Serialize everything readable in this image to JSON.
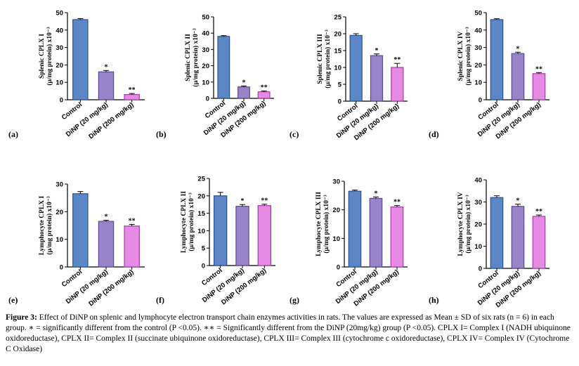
{
  "colors": {
    "control": "#5b87c6",
    "control_stroke": "#2e4f8a",
    "dinp20": "#9a84c9",
    "dinp20_stroke": "#5a4690",
    "dinp200": "#e68ae6",
    "dinp200_stroke": "#a13ea1",
    "axis": "#000000"
  },
  "caption": {
    "lead": "Figure 3:",
    "text": " Effect of DiNP on splenic and lymphocyte electron transport chain enzymes activities in rats. The values are expressed as Mean ± SD of six rats (n = 6) in each group. ∗ = significantly different from the control (P <0.05). ∗∗ = Significantly different from the DiNP (20mg/kg) group (P <0.05). CPLX I= Complex I (NADH ubiquinone oxidoreductase), CPLX II= Complex II (succinate ubiquinone oxidoreductase), CPLX III= Complex III (cytochrome c oxidoreductase), CPLX IV= Complex IV (Cytochrome C Oxidase)"
  },
  "chart_data": [
    {
      "panel": "(a)",
      "type": "bar",
      "categories": [
        "Control",
        "DiNP (20 mg/kg)",
        "DiNP (200 mg/kg)"
      ],
      "values": [
        46,
        16,
        3
      ],
      "errors": [
        0.6,
        0.8,
        0.6
      ],
      "sig": [
        "",
        "*",
        "**"
      ],
      "ylabel": [
        "Splenic CPLX I",
        "(µ/mg protein) x10⁻³"
      ],
      "ylim": [
        0,
        50
      ],
      "yticks": [
        0,
        10,
        20,
        30,
        40,
        50
      ]
    },
    {
      "panel": "(b)",
      "type": "bar",
      "categories": [
        "Control",
        "DiNP (20 mg/kg)",
        "DiNP (200 mg/kg)"
      ],
      "values": [
        38,
        7,
        4
      ],
      "errors": [
        0.5,
        0.6,
        0.5
      ],
      "sig": [
        "",
        "*",
        "**"
      ],
      "ylabel": [
        "Splenic CPLX II",
        "(µ/mg protein) x10⁻³"
      ],
      "ylim": [
        0,
        50
      ],
      "yticks": [
        0,
        10,
        20,
        30,
        40,
        50
      ]
    },
    {
      "panel": "(c)",
      "type": "bar",
      "categories": [
        "Control",
        "DiNP (20 mg/kg)",
        "DiNP (200 mg/kg)"
      ],
      "values": [
        19.5,
        13.5,
        10
      ],
      "errors": [
        0.5,
        0.5,
        1.2
      ],
      "sig": [
        "",
        "*",
        "**"
      ],
      "ylabel": [
        "Splenic CPLX III",
        "(µ/mg protein) x10⁻³"
      ],
      "ylim": [
        0,
        25
      ],
      "yticks": [
        0,
        5,
        10,
        15,
        20,
        25
      ]
    },
    {
      "panel": "(d)",
      "type": "bar",
      "categories": [
        "Control",
        "DiNP (20 mg/kg)",
        "DiNP (200 mg/kg)"
      ],
      "values": [
        46,
        26.5,
        15
      ],
      "errors": [
        0.5,
        0.8,
        0.6
      ],
      "sig": [
        "",
        "*",
        "**"
      ],
      "ylabel": [
        "Splenic CPLX IV",
        "(µ/mg protein) x10⁻³"
      ],
      "ylim": [
        0,
        50
      ],
      "yticks": [
        0,
        10,
        20,
        30,
        40,
        50
      ]
    },
    {
      "panel": "(e)",
      "type": "bar",
      "categories": [
        "Control",
        "DiNP (20 mg/kg)",
        "DiNP (200 mg/kg)"
      ],
      "values": [
        26.5,
        16.5,
        14.8
      ],
      "errors": [
        0.8,
        0.4,
        0.6
      ],
      "sig": [
        "",
        "*",
        "**"
      ],
      "ylabel": [
        "Lymphocyte CPLX I",
        "(µ/mg protein) x10⁻³"
      ],
      "ylim": [
        0,
        30
      ],
      "yticks": [
        0,
        10,
        20,
        30
      ]
    },
    {
      "panel": "(f)",
      "type": "bar",
      "categories": [
        "Control",
        "DiNP (20 mg/kg)",
        "DiNP (200 mg/kg)"
      ],
      "values": [
        20,
        17,
        17.2
      ],
      "errors": [
        1.0,
        0.5,
        0.4
      ],
      "sig": [
        "",
        "*",
        "**"
      ],
      "ylabel": [
        "Lymphocyte CPLX II",
        "(µ/mg protein) x10⁻³"
      ],
      "ylim": [
        0,
        25
      ],
      "yticks": [
        0,
        5,
        10,
        15,
        20,
        25
      ]
    },
    {
      "panel": "(g)",
      "type": "bar",
      "categories": [
        "Control",
        "DiNP (20 mg/kg)",
        "DiNP (200 mg/kg)"
      ],
      "values": [
        26.5,
        24,
        21
      ],
      "errors": [
        0.4,
        0.5,
        0.5
      ],
      "sig": [
        "",
        "*",
        "**"
      ],
      "ylabel": [
        "Lymphocyte CPLX III",
        "(µ/mg protein) x10⁻³"
      ],
      "ylim": [
        0,
        30
      ],
      "yticks": [
        0,
        10,
        20,
        30
      ]
    },
    {
      "panel": "(h)",
      "type": "bar",
      "categories": [
        "Control",
        "DiNP (20 mg/kg)",
        "DiNP (200 mg/kg)"
      ],
      "values": [
        32,
        28,
        23.5
      ],
      "errors": [
        0.8,
        1.0,
        0.6
      ],
      "sig": [
        "",
        "*",
        "**"
      ],
      "ylabel": [
        "Lymphocyte CPLX IV",
        "(µ/mg protein) x10⁻³"
      ],
      "ylim": [
        0,
        40
      ],
      "yticks": [
        0,
        10,
        20,
        30,
        40
      ]
    }
  ]
}
